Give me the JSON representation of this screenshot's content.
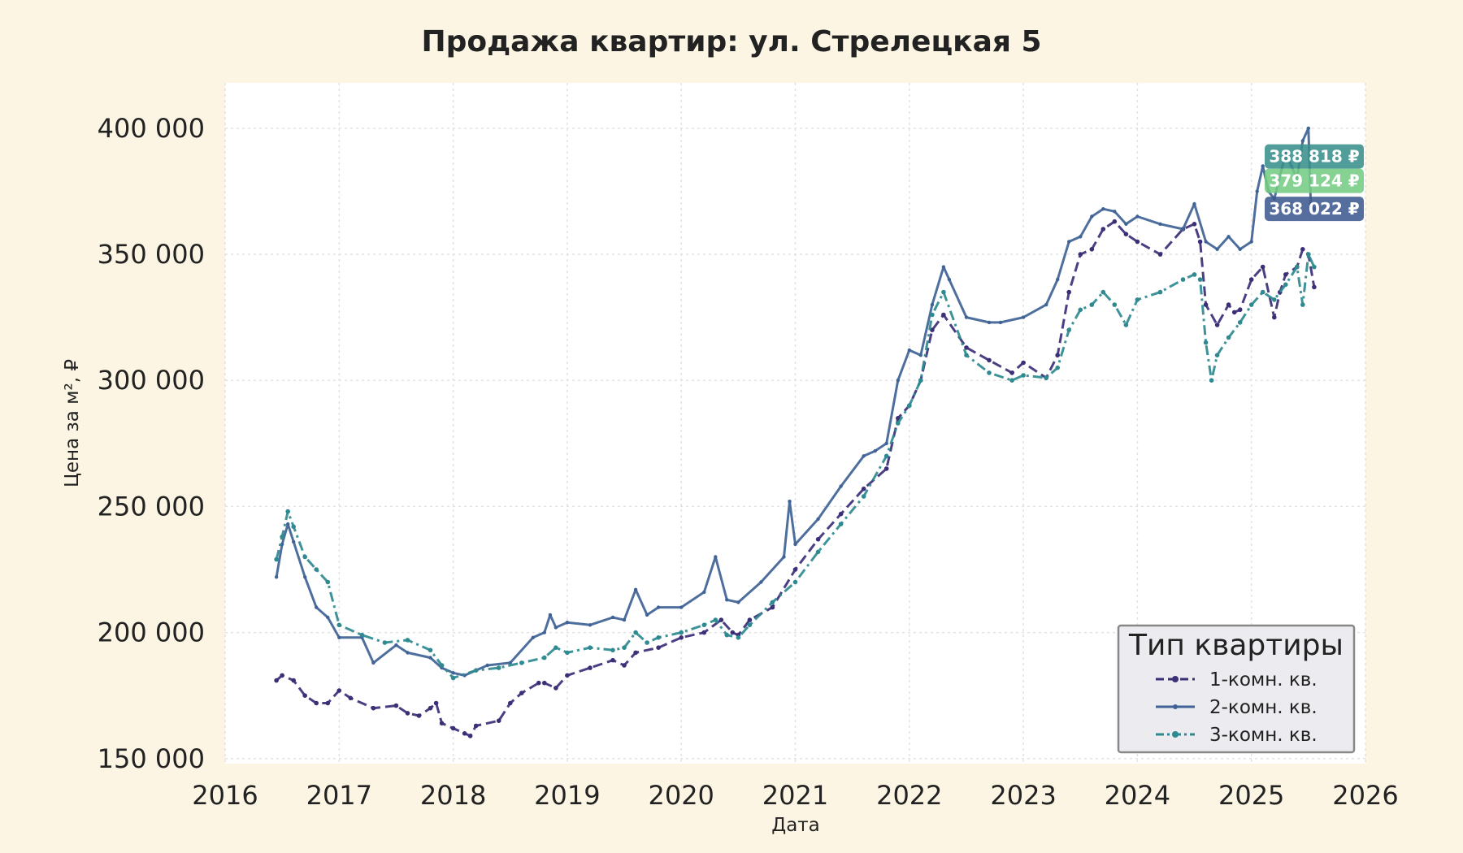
{
  "chart_data": {
    "type": "line",
    "title": "Продажа квартир: ул. Стрелецкая 5",
    "xlabel": "Дата",
    "ylabel": "Цена за м², ₽",
    "xlim": [
      2016,
      2026
    ],
    "ylim": [
      148000,
      418000
    ],
    "x_ticks": [
      2016,
      2017,
      2018,
      2019,
      2020,
      2021,
      2022,
      2023,
      2024,
      2025,
      2026
    ],
    "x_tick_labels": [
      "2016",
      "2017",
      "2018",
      "2019",
      "2020",
      "2021",
      "2022",
      "2023",
      "2024",
      "2025",
      "2026"
    ],
    "y_ticks": [
      150000,
      200000,
      250000,
      300000,
      350000,
      400000
    ],
    "y_tick_labels": [
      "150 000",
      "200 000",
      "250 000",
      "300 000",
      "350 000",
      "400 000"
    ],
    "grid": true,
    "legend": {
      "title": "Тип квартиры",
      "placement": "bottom-right"
    },
    "series": [
      {
        "name": "1-комн. кв.",
        "color": "#3b2f78",
        "dash": "dashed",
        "marker": "dot",
        "x": [
          2016.45,
          2016.5,
          2016.6,
          2016.7,
          2016.8,
          2016.9,
          2017.0,
          2017.1,
          2017.3,
          2017.5,
          2017.6,
          2017.7,
          2017.8,
          2017.85,
          2017.9,
          2018.0,
          2018.1,
          2018.15,
          2018.2,
          2018.4,
          2018.5,
          2018.6,
          2018.75,
          2018.8,
          2018.9,
          2019.0,
          2019.2,
          2019.4,
          2019.5,
          2019.6,
          2019.8,
          2020.0,
          2020.2,
          2020.35,
          2020.45,
          2020.5,
          2020.6,
          2020.8,
          2021.0,
          2021.2,
          2021.4,
          2021.6,
          2021.8,
          2021.9,
          2022.0,
          2022.1,
          2022.2,
          2022.3,
          2022.5,
          2022.7,
          2022.9,
          2023.0,
          2023.2,
          2023.3,
          2023.4,
          2023.5,
          2023.6,
          2023.7,
          2023.8,
          2023.9,
          2024.0,
          2024.2,
          2024.4,
          2024.5,
          2024.55,
          2024.6,
          2024.7,
          2024.8,
          2024.85,
          2024.9,
          2025.0,
          2025.1,
          2025.2,
          2025.25,
          2025.3,
          2025.4,
          2025.45,
          2025.5,
          2025.55
        ],
        "y": [
          181000,
          183000,
          181000,
          175000,
          172000,
          172000,
          177000,
          174000,
          170000,
          171000,
          168000,
          167000,
          170000,
          172000,
          164000,
          162000,
          160000,
          159000,
          163000,
          165000,
          172000,
          176000,
          180000,
          180000,
          178000,
          183000,
          186000,
          189000,
          187000,
          192000,
          194000,
          198000,
          200000,
          205000,
          200000,
          199000,
          205000,
          210000,
          225000,
          237000,
          247000,
          257000,
          265000,
          285000,
          290000,
          300000,
          320000,
          326000,
          313000,
          308000,
          303000,
          307000,
          301000,
          310000,
          335000,
          350000,
          352000,
          360000,
          363000,
          358000,
          355000,
          350000,
          360000,
          362000,
          355000,
          330000,
          322000,
          330000,
          327000,
          328000,
          340000,
          345000,
          325000,
          335000,
          342000,
          345000,
          352000,
          350000,
          337000
        ]
      },
      {
        "name": "2-комн. кв.",
        "color": "#3f6396",
        "dash": "solid",
        "marker": "small-dot",
        "x": [
          2016.45,
          2016.5,
          2016.55,
          2016.6,
          2016.7,
          2016.8,
          2016.9,
          2017.0,
          2017.2,
          2017.3,
          2017.5,
          2017.6,
          2017.8,
          2017.9,
          2018.0,
          2018.1,
          2018.3,
          2018.5,
          2018.7,
          2018.8,
          2018.85,
          2018.9,
          2019.0,
          2019.2,
          2019.4,
          2019.5,
          2019.6,
          2019.7,
          2019.8,
          2020.0,
          2020.2,
          2020.3,
          2020.4,
          2020.5,
          2020.7,
          2020.9,
          2020.95,
          2021.0,
          2021.2,
          2021.4,
          2021.6,
          2021.7,
          2021.8,
          2021.9,
          2022.0,
          2022.1,
          2022.2,
          2022.3,
          2022.35,
          2022.5,
          2022.7,
          2022.8,
          2023.0,
          2023.2,
          2023.3,
          2023.4,
          2023.5,
          2023.6,
          2023.7,
          2023.8,
          2023.9,
          2024.0,
          2024.2,
          2024.4,
          2024.5,
          2024.6,
          2024.7,
          2024.8,
          2024.9,
          2025.0,
          2025.05,
          2025.1,
          2025.15,
          2025.2,
          2025.3,
          2025.35,
          2025.4,
          2025.45,
          2025.5,
          2025.52,
          2025.55
        ],
        "y": [
          222000,
          235000,
          243000,
          236000,
          222000,
          210000,
          206000,
          198000,
          198000,
          188000,
          195000,
          192000,
          190000,
          186000,
          184000,
          183000,
          187000,
          188000,
          198000,
          200000,
          207000,
          202000,
          204000,
          203000,
          206000,
          205000,
          217000,
          207000,
          210000,
          210000,
          216000,
          230000,
          213000,
          212000,
          220000,
          230000,
          252000,
          235000,
          245000,
          258000,
          270000,
          272000,
          275000,
          300000,
          312000,
          310000,
          330000,
          345000,
          340000,
          325000,
          323000,
          323000,
          325000,
          330000,
          340000,
          355000,
          357000,
          365000,
          368000,
          367000,
          362000,
          365000,
          362000,
          360000,
          370000,
          355000,
          352000,
          357000,
          352000,
          355000,
          375000,
          385000,
          375000,
          372000,
          390000,
          385000,
          380000,
          395000,
          400000,
          370000,
          368000
        ]
      },
      {
        "name": "3-комн. кв.",
        "color": "#2e8a90",
        "dash": "dashdot",
        "marker": "dot",
        "x": [
          2016.45,
          2016.5,
          2016.55,
          2016.6,
          2016.7,
          2016.8,
          2016.9,
          2017.0,
          2017.2,
          2017.4,
          2017.6,
          2017.8,
          2017.9,
          2018.0,
          2018.2,
          2018.4,
          2018.6,
          2018.8,
          2018.9,
          2019.0,
          2019.2,
          2019.4,
          2019.5,
          2019.6,
          2019.7,
          2019.8,
          2020.0,
          2020.2,
          2020.3,
          2020.4,
          2020.5,
          2020.6,
          2020.8,
          2021.0,
          2021.2,
          2021.4,
          2021.6,
          2021.8,
          2021.9,
          2022.0,
          2022.1,
          2022.2,
          2022.3,
          2022.5,
          2022.7,
          2022.9,
          2023.0,
          2023.2,
          2023.3,
          2023.4,
          2023.5,
          2023.6,
          2023.7,
          2023.8,
          2023.9,
          2024.0,
          2024.2,
          2024.4,
          2024.5,
          2024.55,
          2024.6,
          2024.65,
          2024.7,
          2024.8,
          2024.9,
          2025.0,
          2025.1,
          2025.2,
          2025.3,
          2025.4,
          2025.45,
          2025.5,
          2025.55
        ],
        "y": [
          229000,
          238000,
          248000,
          242000,
          230000,
          225000,
          220000,
          203000,
          199000,
          196000,
          197000,
          193000,
          187000,
          182000,
          185000,
          186000,
          188000,
          190000,
          194000,
          192000,
          194000,
          193000,
          194000,
          200000,
          196000,
          198000,
          200000,
          203000,
          205000,
          199000,
          198000,
          203000,
          212000,
          220000,
          232000,
          243000,
          254000,
          270000,
          283000,
          290000,
          300000,
          326000,
          335000,
          310000,
          303000,
          300000,
          302000,
          301000,
          305000,
          320000,
          328000,
          330000,
          335000,
          330000,
          322000,
          332000,
          335000,
          340000,
          342000,
          340000,
          315000,
          300000,
          310000,
          317000,
          323000,
          330000,
          335000,
          332000,
          338000,
          345000,
          330000,
          350000,
          345000
        ]
      }
    ],
    "end_labels": [
      {
        "text": "388 818 ₽",
        "color": "#38908c",
        "y": 388818
      },
      {
        "text": "379 124 ₽",
        "color": "#74cc84",
        "y": 379124
      },
      {
        "text": "368 022 ₽",
        "color": "#3f5a91",
        "y": 368022
      }
    ]
  }
}
